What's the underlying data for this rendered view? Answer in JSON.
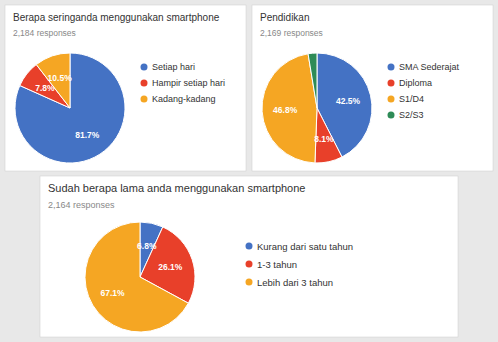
{
  "chart_data": [
    {
      "type": "pie",
      "title": "Berapa seringanda menggunakan smartphone",
      "subtitle": "2,184 responses",
      "categories": [
        "Setiap hari",
        "Hampir setiap hari",
        "Kadang-kadang"
      ],
      "values": [
        81.7,
        7.8,
        10.5
      ],
      "value_labels": [
        "81.7%",
        "7.8%",
        "10.5%"
      ],
      "colors": [
        "#4472c4",
        "#e8402a",
        "#f5a623"
      ],
      "data_labels": true
    },
    {
      "type": "pie",
      "title": "Pendidikan",
      "subtitle": "2,169 responses",
      "categories": [
        "SMA Sederajat",
        "Diploma",
        "S1/D4",
        "S2/S3"
      ],
      "values": [
        42.5,
        8.1,
        46.8,
        2.6
      ],
      "value_labels": [
        "42.5%",
        "8.1%",
        "46.8%",
        null
      ],
      "colors": [
        "#4472c4",
        "#e8402a",
        "#f5a623",
        "#2e8b57"
      ],
      "data_labels": true
    },
    {
      "type": "pie",
      "title": "Sudah berapa lama anda menggunakan smartphone",
      "subtitle": "2,164 responses",
      "categories": [
        "Kurang dari satu tahun",
        "1-3 tahun",
        "Lebih dari 3 tahun"
      ],
      "values": [
        6.8,
        26.1,
        67.1
      ],
      "value_labels": [
        "6.8%",
        "26.1%",
        "67.1%"
      ],
      "colors": [
        "#4472c4",
        "#e8402a",
        "#f5a623"
      ],
      "data_labels": true
    }
  ]
}
